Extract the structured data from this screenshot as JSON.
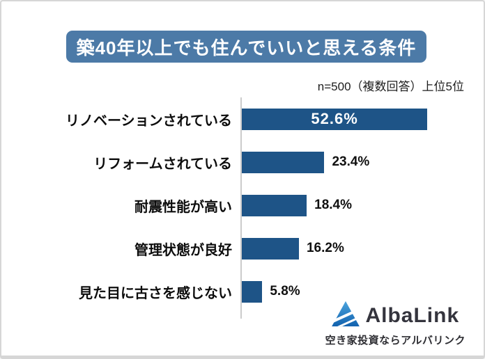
{
  "header": {
    "title": "築40年以上でも住んでいいと思える条件",
    "subtitle": "n=500（複数回答）上位5位"
  },
  "chart_data": {
    "type": "bar",
    "orientation": "horizontal",
    "title": "築40年以上でも住んでいいと思える条件",
    "note": "n=500（複数回答）上位5位",
    "categories": [
      "リノベーションされている",
      "リフォームされている",
      "耐震性能が高い",
      "管理状態が良好",
      "見た目に古さを感じない"
    ],
    "values": [
      52.6,
      23.4,
      18.4,
      16.2,
      5.8
    ],
    "value_labels": [
      "52.6%",
      "23.4%",
      "18.4%",
      "16.2%",
      "5.8%"
    ],
    "value_label_position": [
      "inside",
      "outside",
      "outside",
      "outside",
      "outside"
    ],
    "xlim": [
      0,
      65
    ],
    "bar_color": "#1e5487",
    "axis_color": "#cccccc",
    "grid": false,
    "legend": false
  },
  "logo": {
    "brand": "AlbaLink",
    "tagline": "空き家投資ならアルバリンク",
    "icon": "mountain-triangle-icon",
    "brand_color": "#34343d",
    "icon_color_top": "#4ba4dd",
    "icon_color_bottom": "#1161ae"
  },
  "colors": {
    "title_bg": "#4c7aa7",
    "title_text": "#ffffff",
    "page_border": "#d6d6d6",
    "text": "#111111"
  }
}
